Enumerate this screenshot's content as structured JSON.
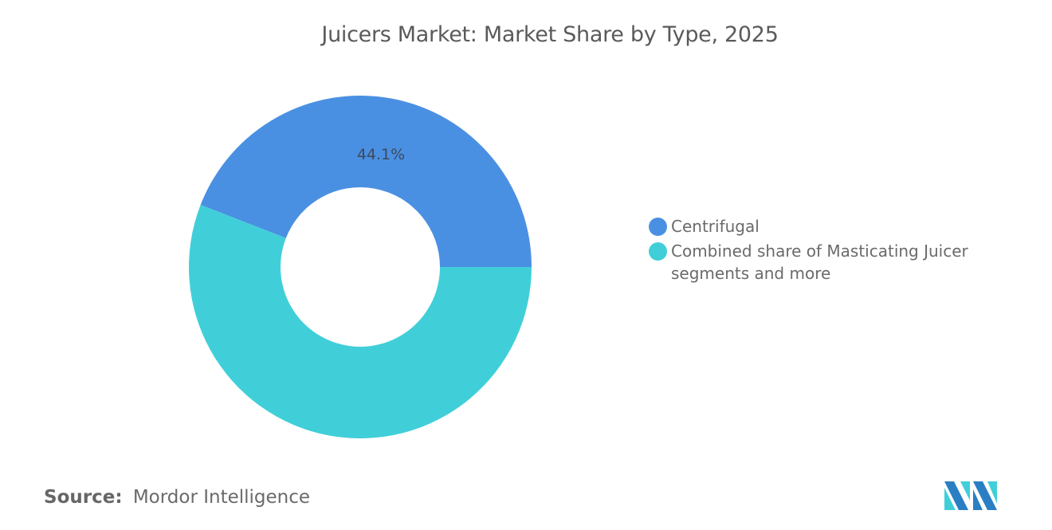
{
  "title": "Juicers Market: Market Share by Type, 2025",
  "chart_data": {
    "type": "pie",
    "subtype": "donut",
    "title": "Juicers Market: Market Share by Type, 2025",
    "categories": [
      "Centrifugal",
      "Combined share of Masticating Juicer segments and more"
    ],
    "values": [
      44.1,
      55.9
    ],
    "unit": "%",
    "data_labels": [
      "44.1%",
      ""
    ],
    "colors": [
      "#4a90e2",
      "#40cfd9"
    ],
    "legend_position": "right"
  },
  "legend": {
    "items": [
      {
        "label": "Centrifugal",
        "color": "#4a90e2"
      },
      {
        "label": "Combined share of Masticating Juicer segments and more",
        "color": "#40cfd9"
      }
    ]
  },
  "slice_label": "44.1%",
  "source": {
    "prefix": "Source:",
    "name": "Mordor Intelligence"
  },
  "logo": {
    "icon": "mordor-intelligence-logo-icon",
    "colors": [
      "#2a7fc4",
      "#40cfd9"
    ]
  }
}
